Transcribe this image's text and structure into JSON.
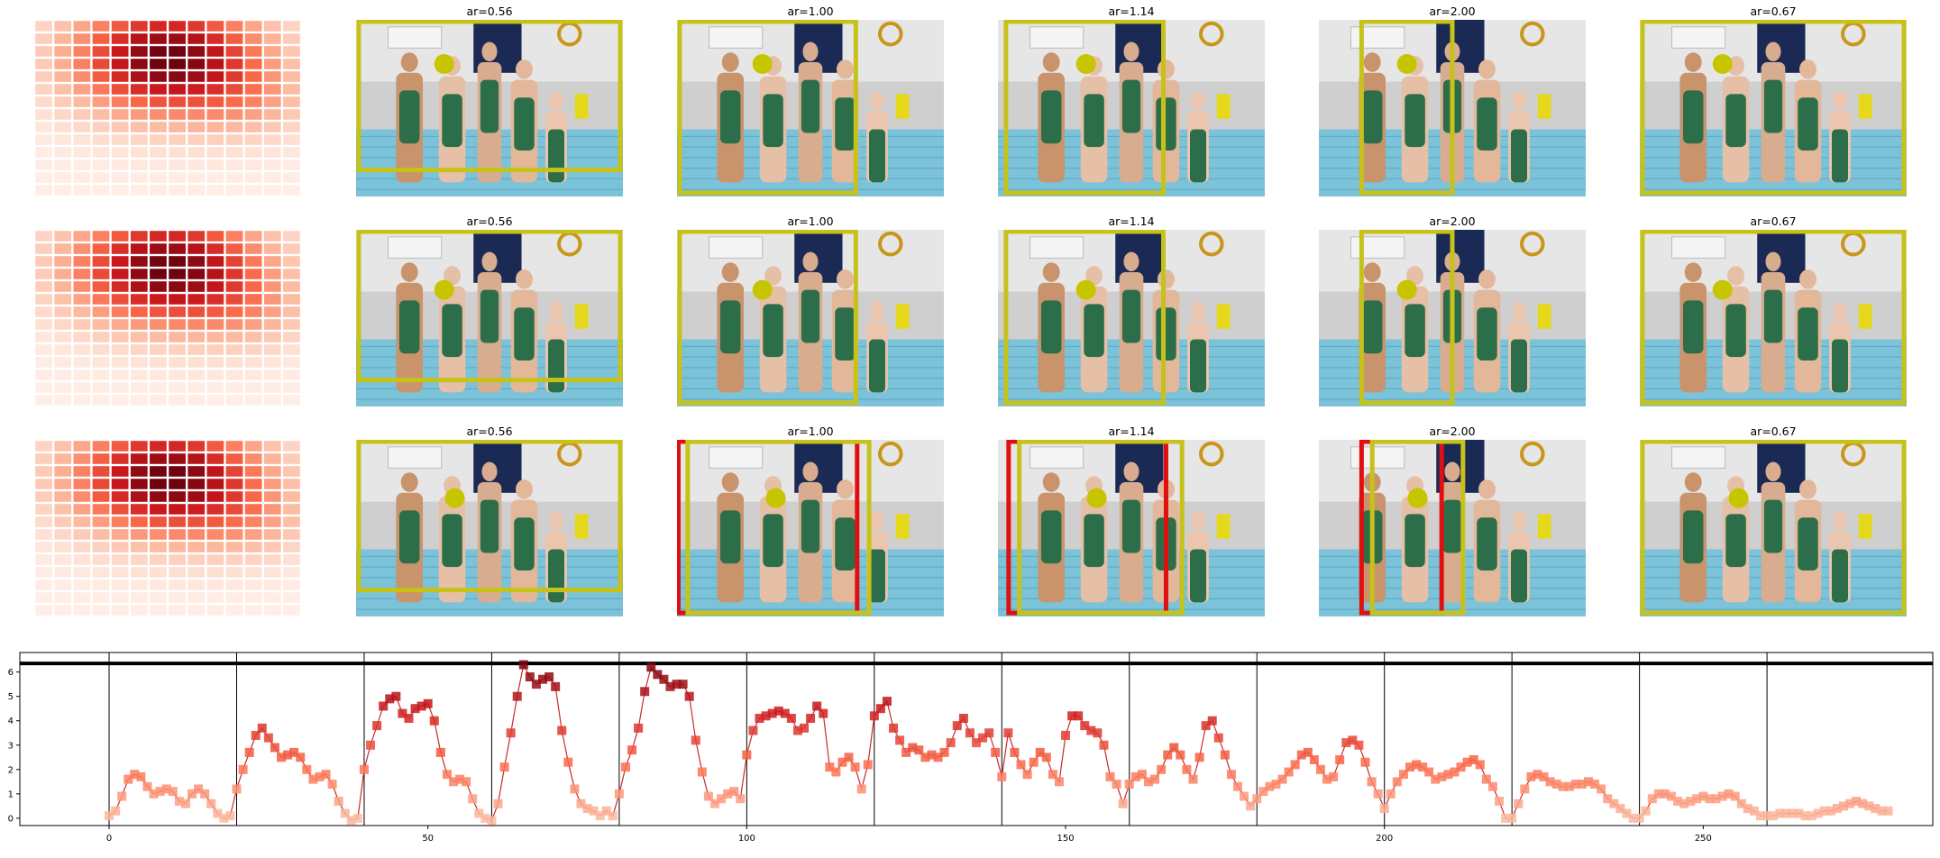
{
  "colors": {
    "box_yellow": "#c6c21a",
    "box_red": "#e01010",
    "dot_yellow": "#c7c400",
    "line_red": "#cb2a2a",
    "heat_low": "#fff0ea",
    "heat_high": "#a01020"
  },
  "grid_rows": [
    {
      "panels": [
        {
          "title": "ar=0.56"
        },
        {
          "title": "ar=1.00"
        },
        {
          "title": "ar=1.14"
        },
        {
          "title": "ar=2.00"
        },
        {
          "title": "ar=0.67"
        }
      ]
    },
    {
      "panels": [
        {
          "title": "ar=0.56"
        },
        {
          "title": "ar=1.00"
        },
        {
          "title": "ar=1.14"
        },
        {
          "title": "ar=2.00"
        },
        {
          "title": "ar=0.67"
        }
      ]
    },
    {
      "panels": [
        {
          "title": "ar=0.56"
        },
        {
          "title": "ar=1.00"
        },
        {
          "title": "ar=1.14"
        },
        {
          "title": "ar=2.00"
        },
        {
          "title": "ar=0.67"
        }
      ]
    }
  ],
  "chart_data": {
    "type": "line",
    "title": "",
    "xlabel": "",
    "ylabel": "",
    "xlim": [
      -14,
      286
    ],
    "ylim": [
      -0.3,
      6.8
    ],
    "xticks": [
      0,
      50,
      100,
      150,
      200,
      250
    ],
    "yticks": [
      0,
      1,
      2,
      3,
      4,
      5,
      6
    ],
    "threshold_line": 6.35,
    "segment_boundaries": [
      0,
      20,
      40,
      60,
      80,
      100,
      120,
      140,
      160,
      180,
      200,
      220,
      240,
      260
    ],
    "series": [
      {
        "values": [
          0.1,
          0.3,
          0.9,
          1.6,
          1.8,
          1.7,
          1.3,
          1.0,
          1.1,
          1.2,
          1.1,
          0.7,
          0.6,
          1.0,
          1.2,
          1.0,
          0.6,
          0.2,
          0.0,
          0.1,
          1.2,
          2.0,
          2.7,
          3.4,
          3.7,
          3.3,
          2.9,
          2.5,
          2.6,
          2.7,
          2.5,
          2.0,
          1.6,
          1.7,
          1.8,
          1.4,
          0.7,
          0.2,
          -0.1,
          0.0,
          2.0,
          3.0,
          3.8,
          4.6,
          4.9,
          5.0,
          4.3,
          4.1,
          4.5,
          4.6,
          4.7,
          4.0,
          2.7,
          1.8,
          1.5,
          1.6,
          1.5,
          0.8,
          0.2,
          0.0,
          -0.1,
          0.6,
          2.1,
          3.5,
          5.0,
          6.3,
          5.8,
          5.5,
          5.7,
          5.8,
          5.4,
          3.6,
          2.3,
          1.2,
          0.6,
          0.4,
          0.3,
          0.1,
          0.3,
          0.1,
          1.0,
          2.1,
          2.8,
          3.7,
          5.2,
          6.2,
          5.9,
          5.7,
          5.4,
          5.5,
          5.5,
          5.0,
          3.2,
          1.9,
          0.9,
          0.6,
          0.8,
          1.0,
          1.1,
          0.8,
          2.6,
          3.6,
          4.1,
          4.2,
          4.3,
          4.4,
          4.3,
          4.1,
          3.6,
          3.7,
          4.1,
          4.6,
          4.3,
          2.1,
          1.9,
          2.3,
          2.5,
          2.1,
          1.2,
          2.2,
          4.2,
          4.5,
          4.8,
          3.7,
          3.2,
          2.7,
          2.9,
          2.8,
          2.5,
          2.6,
          2.5,
          2.7,
          3.1,
          3.8,
          4.1,
          3.5,
          3.1,
          3.3,
          3.5,
          2.7,
          1.7,
          3.5,
          2.7,
          2.2,
          1.8,
          2.3,
          2.7,
          2.5,
          1.8,
          1.5,
          3.4,
          4.2,
          4.2,
          3.8,
          3.6,
          3.5,
          3.0,
          1.7,
          1.4,
          0.6,
          1.4,
          1.7,
          1.8,
          1.5,
          1.6,
          2.0,
          2.6,
          2.9,
          2.6,
          2.0,
          1.6,
          2.5,
          3.8,
          4.0,
          3.3,
          2.6,
          1.8,
          1.3,
          0.9,
          0.5,
          0.8,
          1.1,
          1.3,
          1.4,
          1.6,
          1.9,
          2.2,
          2.6,
          2.7,
          2.4,
          2.0,
          1.6,
          1.7,
          2.4,
          3.1,
          3.2,
          3.0,
          2.3,
          1.5,
          1.0,
          0.4,
          1.0,
          1.5,
          1.8,
          2.1,
          2.2,
          2.1,
          1.9,
          1.6,
          1.7,
          1.8,
          1.9,
          2.1,
          2.3,
          2.4,
          2.2,
          1.6,
          1.3,
          0.7,
          0.0,
          0.0,
          0.6,
          1.2,
          1.7,
          1.8,
          1.7,
          1.5,
          1.4,
          1.3,
          1.3,
          1.4,
          1.4,
          1.5,
          1.4,
          1.2,
          0.8,
          0.6,
          0.4,
          0.2,
          0.0,
          0.0,
          0.3,
          0.8,
          1.0,
          1.0,
          0.9,
          0.7,
          0.6,
          0.7,
          0.8,
          0.9,
          0.8,
          0.8,
          0.9,
          1.0,
          0.9,
          0.6,
          0.4,
          0.3,
          0.1,
          0.1,
          0.1,
          0.2,
          0.2,
          0.2,
          0.2,
          0.1,
          0.1,
          0.2,
          0.3,
          0.3,
          0.4,
          0.5,
          0.6,
          0.7,
          0.6,
          0.5,
          0.4,
          0.3,
          0.3
        ]
      }
    ]
  }
}
